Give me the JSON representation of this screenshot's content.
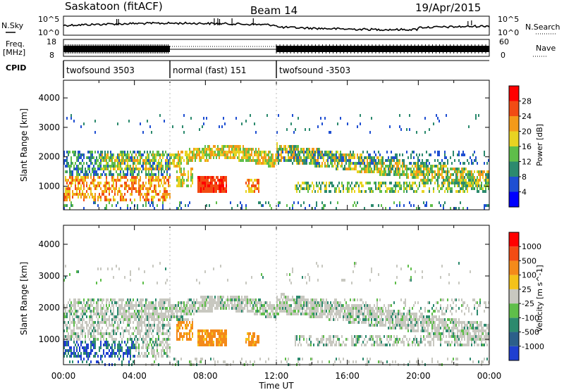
{
  "header": {
    "station": "Saskatoon (fitACF)",
    "beam": "Beam 14",
    "date": "19/Apr/2015"
  },
  "left_labels": {
    "nsky": "N.Sky",
    "freq": "Freq.",
    "freq_unit": "[MHz]",
    "cpid": "CPID"
  },
  "right_labels": {
    "nsearch": "N.Search",
    "nave": "Nave"
  },
  "noise_panel": {
    "left_ticks": [
      "10^5",
      "10^0"
    ],
    "right_ticks": [
      "10^5",
      "10^0"
    ]
  },
  "freq_panel": {
    "left_ticks": [
      "18",
      "8"
    ],
    "right_ticks": [
      "60",
      "0"
    ]
  },
  "cpid_segments": [
    {
      "label": "twofsound 3503",
      "start": 0,
      "end": 6
    },
    {
      "label": "normal (fast) 151",
      "start": 6,
      "end": 12
    },
    {
      "label": "twofsound -3503",
      "start": 12,
      "end": 24
    }
  ],
  "chart_data": [
    {
      "type": "heatmap",
      "parameter": "Power",
      "colorbar_label": "Power [dB]",
      "colorbar_ticks": [
        "28",
        "24",
        "20",
        "16",
        "12",
        "8",
        "4"
      ],
      "colorbar_colors": [
        "#0000ff",
        "#1f4fd2",
        "#2c8a6e",
        "#5fbe4a",
        "#e8d322",
        "#f49a1a",
        "#f24c14",
        "#ff0000"
      ],
      "ylabel": "Slant Range [km]",
      "yticks": [
        "4000",
        "3000",
        "2000",
        "1000"
      ],
      "ylim": [
        200,
        4600
      ],
      "xlim": [
        0,
        24
      ],
      "echo_bands": [
        {
          "t0": 0,
          "t1": 1.5,
          "r0": 600,
          "r1": 2200,
          "level": 2
        },
        {
          "t0": 1.5,
          "t1": 4,
          "r0": 900,
          "r1": 1800,
          "level": 3
        },
        {
          "t0": 4,
          "t1": 6,
          "r0": 1700,
          "r1": 2100,
          "level": 5
        },
        {
          "t0": 6,
          "t1": 11,
          "r0": 2000,
          "r1": 2400,
          "level": 5
        },
        {
          "t0": 7.5,
          "t1": 9,
          "r0": 900,
          "r1": 1500,
          "level": 7
        },
        {
          "t0": 12,
          "t1": 24,
          "r0": 1300,
          "r1": 1800,
          "level": 4
        },
        {
          "t0": 13,
          "t1": 24,
          "r0": 900,
          "r1": 1250,
          "level": 3
        }
      ]
    },
    {
      "type": "heatmap",
      "parameter": "Velocity",
      "colorbar_label": "Velocity [m s^-1]",
      "colorbar_ticks": [
        "1000",
        "500",
        "100",
        "25",
        "-25",
        "-100",
        "-500",
        "-1000"
      ],
      "colorbar_colors": [
        "#1f3fd0",
        "#2c5f8a",
        "#2c8a6e",
        "#5fbe4a",
        "#c8c8c0",
        "#f4c21a",
        "#f48a1a",
        "#f24c14",
        "#ff0000"
      ],
      "ylabel": "Slant Range [km]",
      "yticks": [
        "4000",
        "3000",
        "2000",
        "1000"
      ],
      "ylim": [
        200,
        4600
      ],
      "xlim": [
        0,
        24
      ],
      "xlabel": "Time UT",
      "xticks": [
        "00:00",
        "04:00",
        "08:00",
        "12:00",
        "16:00",
        "20:00",
        "00:00"
      ]
    }
  ]
}
